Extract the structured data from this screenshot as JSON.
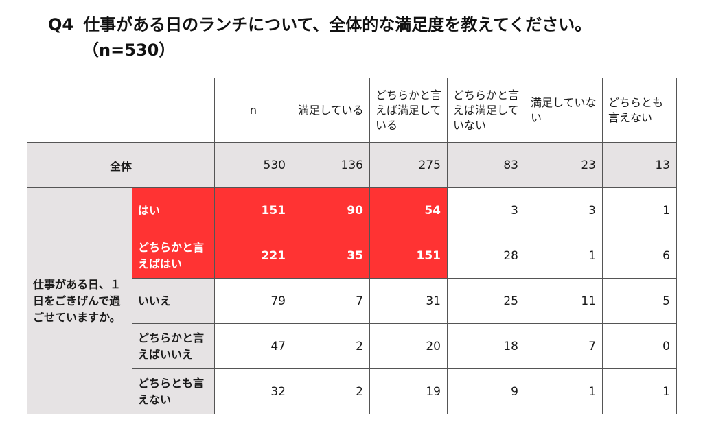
{
  "title": {
    "number": "Q4",
    "text": "仕事がある日のランチについて、全体的な満足度を教えてください。",
    "sample": "（n=530）"
  },
  "colors": {
    "highlight": "#ff3333",
    "label_bg": "#e6e3e4"
  },
  "table": {
    "headers": [
      "n",
      "満足している",
      "どちらかと言えば満足している",
      "どちらかと言えば満足していない",
      "満足していない",
      "どちらとも言えない"
    ],
    "total": {
      "label": "全体",
      "values": [
        "530",
        "136",
        "275",
        "83",
        "23",
        "13"
      ]
    },
    "group_label": "仕事がある日、１日をごきげんで過ごせていますか。",
    "rows": [
      {
        "label": "はい",
        "values": [
          "151",
          "90",
          "54",
          "3",
          "3",
          "1"
        ]
      },
      {
        "label": "どちらかと言えばはい",
        "values": [
          "221",
          "35",
          "151",
          "28",
          "1",
          "6"
        ]
      },
      {
        "label": "いいえ",
        "values": [
          "79",
          "7",
          "31",
          "25",
          "11",
          "5"
        ]
      },
      {
        "label": "どちらかと言えばいいえ",
        "values": [
          "47",
          "2",
          "20",
          "18",
          "7",
          "0"
        ]
      },
      {
        "label": "どちらとも言えない",
        "values": [
          "32",
          "2",
          "19",
          "9",
          "1",
          "1"
        ]
      }
    ]
  }
}
